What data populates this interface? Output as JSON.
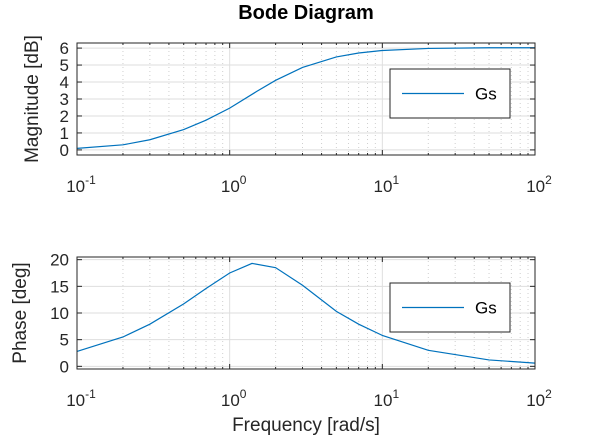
{
  "chart_data": [
    {
      "type": "line",
      "title": "Bode Diagram",
      "xlabel": "",
      "ylabel": "Magnitude [dB]",
      "xscale": "log",
      "xlim": [
        0.1,
        100
      ],
      "ylim": [
        -0.3,
        6.3
      ],
      "x_ticks": [
        {
          "base": "10",
          "exp": "-1",
          "value": 0.1
        },
        {
          "base": "10",
          "exp": "0",
          "value": 1
        },
        {
          "base": "10",
          "exp": "1",
          "value": 10
        },
        {
          "base": "10",
          "exp": "2",
          "value": 100
        }
      ],
      "y_ticks": [
        "0",
        "1",
        "2",
        "3",
        "4",
        "5",
        "6"
      ],
      "grid": true,
      "legend_position": "right",
      "series": [
        {
          "name": "Gs",
          "color": "#0072BD",
          "x": [
            0.1,
            0.2,
            0.3,
            0.5,
            0.7,
            1,
            1.5,
            2,
            3,
            5,
            7,
            10,
            20,
            50,
            100
          ],
          "y": [
            0.09,
            0.3,
            0.6,
            1.2,
            1.75,
            2.46,
            3.44,
            4.1,
            4.86,
            5.48,
            5.71,
            5.86,
            5.98,
            6.02,
            6.02
          ]
        }
      ]
    },
    {
      "type": "line",
      "title": "",
      "xlabel": "Frequency [rad/s]",
      "ylabel": "Phase [deg]",
      "xscale": "log",
      "xlim": [
        0.1,
        100
      ],
      "ylim": [
        -0.5,
        20.5
      ],
      "x_ticks": [
        {
          "base": "10",
          "exp": "-1",
          "value": 0.1
        },
        {
          "base": "10",
          "exp": "0",
          "value": 1
        },
        {
          "base": "10",
          "exp": "1",
          "value": 10
        },
        {
          "base": "10",
          "exp": "2",
          "value": 100
        }
      ],
      "y_ticks": [
        "0",
        "5",
        "10",
        "15",
        "20"
      ],
      "grid": true,
      "legend_position": "right",
      "series": [
        {
          "name": "Gs",
          "color": "#0072BD",
          "x": [
            0.1,
            0.2,
            0.3,
            0.5,
            0.7,
            1,
            1.4,
            2,
            3,
            5,
            7,
            10,
            20,
            50,
            100
          ],
          "y": [
            2.8,
            5.5,
            7.9,
            11.7,
            14.6,
            17.5,
            19.3,
            18.5,
            15.2,
            10.3,
            7.9,
            5.8,
            3.0,
            1.2,
            0.6
          ]
        }
      ]
    }
  ]
}
